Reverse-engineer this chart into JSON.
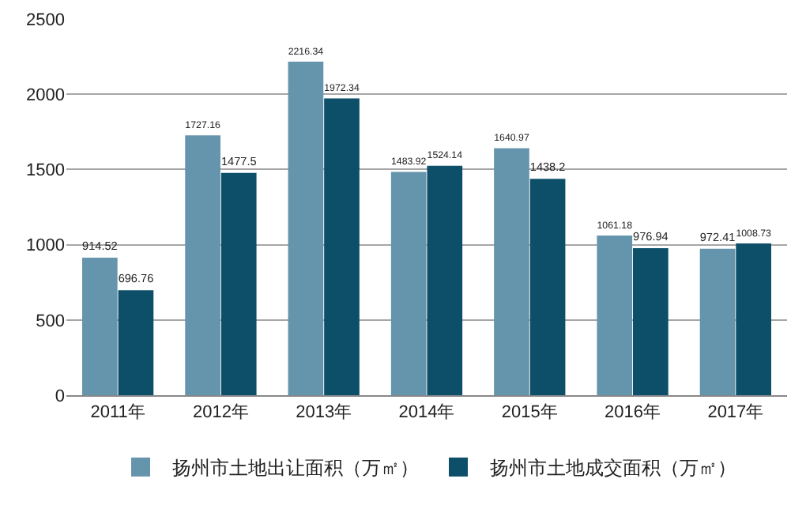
{
  "chart_data": {
    "type": "bar",
    "categories": [
      "2011年",
      "2012年",
      "2013年",
      "2014年",
      "2015年",
      "2016年",
      "2017年"
    ],
    "series": [
      {
        "name": "扬州市土地出让面积（万㎡）",
        "color": "#6595ac",
        "values": [
          914.52,
          1727.16,
          2216.34,
          1483.92,
          1640.97,
          1061.18,
          972.41
        ]
      },
      {
        "name": "扬州市土地成交面积（万㎡）",
        "color": "#0d4e69",
        "values": [
          696.76,
          1477.5,
          1972.34,
          1524.14,
          1438.2,
          976.94,
          1008.73
        ]
      }
    ],
    "ylim": [
      0,
      2500
    ],
    "yticks": [
      0,
      500,
      1000,
      1500,
      2000,
      2500
    ],
    "grid": "y",
    "legend": "bottom",
    "data_labels": true
  }
}
